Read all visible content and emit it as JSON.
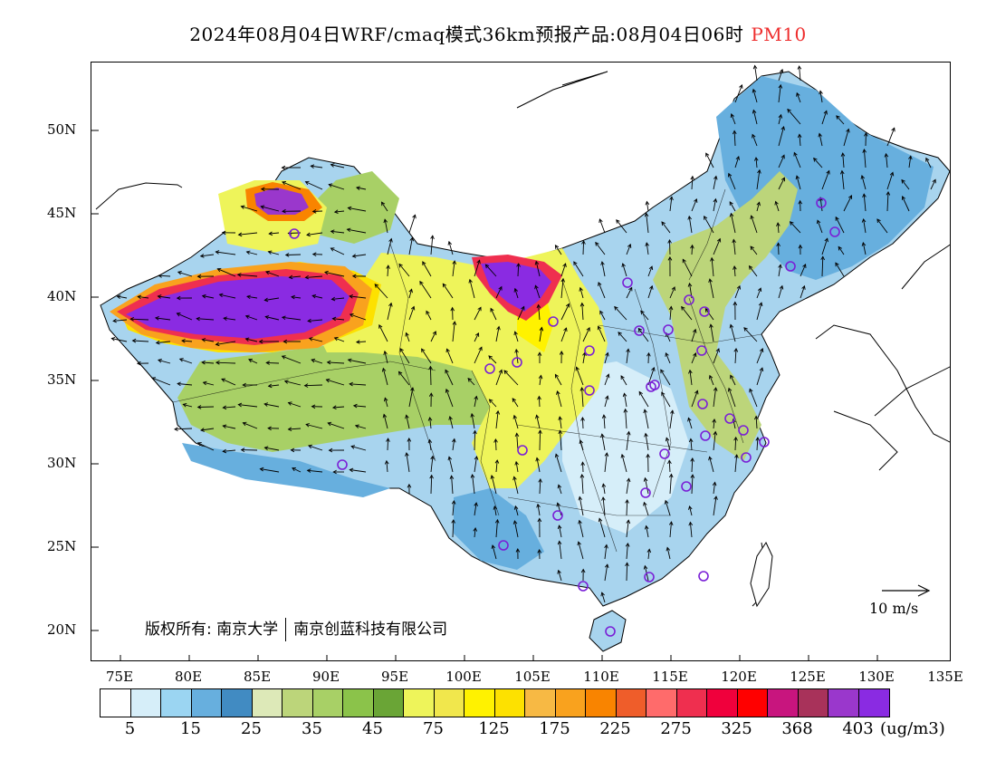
{
  "title": {
    "text": "2024年08月04日WRF/cmaq模式36km预报产品:08月04日06时",
    "highlight": "PM10"
  },
  "lat_labels": [
    "50N",
    "45N",
    "40N",
    "35N",
    "30N",
    "25N",
    "20N"
  ],
  "lon_labels": [
    "75E",
    "80E",
    "85E",
    "90E",
    "95E",
    "100E",
    "105E",
    "110E",
    "115E",
    "120E",
    "125E",
    "130E",
    "135E"
  ],
  "copyright": {
    "part1": "版权所有: 南京大学",
    "part2": "南京创蓝科技有限公司"
  },
  "wind_reference": "10 m/s",
  "colorbar": {
    "colors": [
      "#ffffff",
      "#d6eef9",
      "#9bd5f2",
      "#67afde",
      "#418bc2",
      "#dde9b8",
      "#bcd57a",
      "#a8d066",
      "#8bc34a",
      "#6aa536",
      "#eef45a",
      "#f1e74c",
      "#fff200",
      "#fde100",
      "#f7b944",
      "#f9a21e",
      "#f98400",
      "#ef5d2a",
      "#ff6b6b",
      "#ef2f4f",
      "#f0003c",
      "#ff0000",
      "#c8157e",
      "#a8325a",
      "#9a37cc",
      "#8a2be2"
    ],
    "tick_labels": [
      "5",
      "15",
      "25",
      "35",
      "45",
      "75",
      "125",
      "175",
      "225",
      "275",
      "325",
      "368",
      "403"
    ],
    "unit": "(ug/m3)"
  },
  "legend": {
    "station_marker": "purple-circle",
    "wind_vector": "black-arrow"
  }
}
